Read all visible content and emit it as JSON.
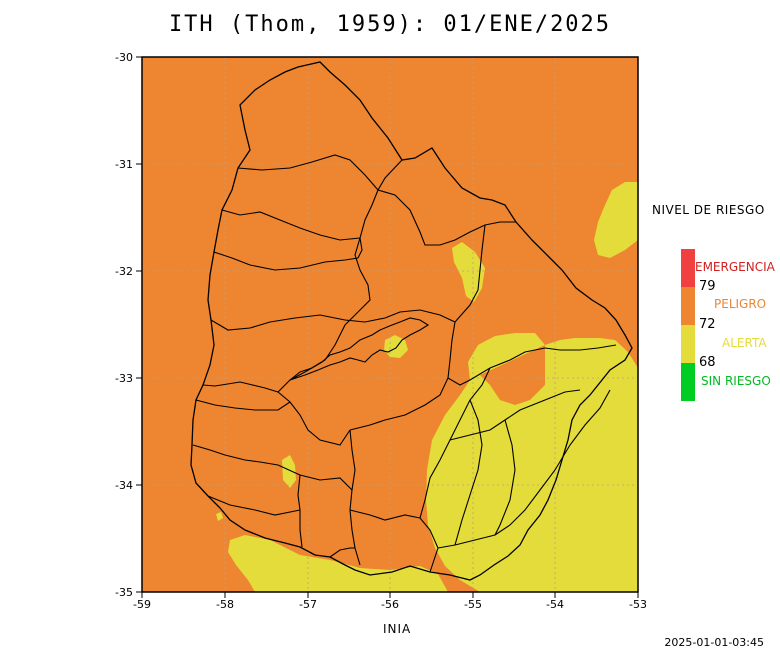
{
  "title": "ITH (Thom, 1959): 01/ENE/2025",
  "source_label": "INIA",
  "timestamp": "2025-01-01-03:45",
  "axes": {
    "x_ticks": [
      "-59",
      "-58",
      "-57",
      "-56",
      "-55",
      "-54",
      "-53"
    ],
    "y_ticks": [
      "-30",
      "-31",
      "-32",
      "-33",
      "-34",
      "-35"
    ]
  },
  "legend": {
    "title": "NIVEL DE RIESGO",
    "levels": [
      {
        "label": "EMERGENCIA",
        "color": "#f04040"
      },
      {
        "label": "PELIGRO",
        "color": "#ee8530"
      },
      {
        "label": "ALERTA",
        "color": "#e4dc3a"
      },
      {
        "label": "SIN RIESGO",
        "color": "#00cc22"
      }
    ],
    "thresholds": [
      "79",
      "72",
      "68"
    ]
  },
  "colors": {
    "peligro_fill": "#ee8530",
    "alerta_fill": "#e4dc3a",
    "boundary": "#000000",
    "grid": "#b8a08a"
  }
}
